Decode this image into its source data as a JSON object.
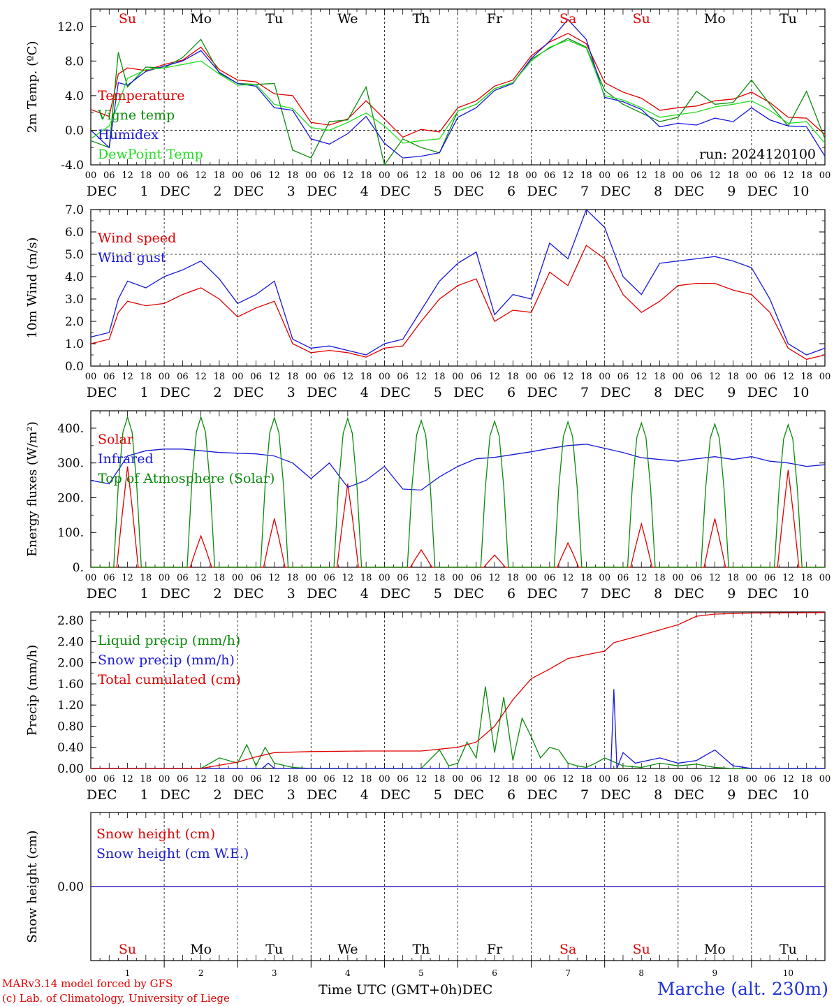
{
  "days": [
    "1",
    "2",
    "3",
    "4",
    "5",
    "6",
    "7",
    "8",
    "9",
    "10"
  ],
  "month": "DEC",
  "weekdays": [
    "Su",
    "Mo",
    "Tu",
    "We",
    "Th",
    "Fr",
    "Sa",
    "Su",
    "Mo",
    "Tu"
  ],
  "weekday_colors": [
    "#e00000",
    "#000000",
    "#000000",
    "#000000",
    "#000000",
    "#000000",
    "#e00000",
    "#e00000",
    "#000000",
    "#000000"
  ],
  "hour_ticks": [
    "00",
    "06",
    "12",
    "18"
  ],
  "run_label": "run: 2024120100",
  "footer": {
    "model": "MARv3.14 model forced by GFS",
    "credit": "(c) Lab. of Climatology, University of Liege",
    "time_label": "Time UTC (GMT+0h)",
    "time_month": "DEC",
    "location": "Marche (alt. 230m)"
  },
  "colors": {
    "red": "#e00000",
    "green": "#0a8a0a",
    "blue": "#1818d8",
    "lightgreen": "#22dd22"
  },
  "chart_data": [
    {
      "type": "line",
      "ylabel": "2m Temp. (ºC)",
      "ylim": [
        -4,
        14
      ],
      "yticks": [
        "-4.0",
        "0.0",
        "4.0",
        "8.0",
        "12.0"
      ],
      "ytick_values": [
        -4,
        0,
        4,
        8,
        12
      ],
      "refline": 0,
      "x_unit": "hours since Dec 1 00 UTC",
      "series": [
        {
          "name": "Temperature",
          "color": "red",
          "x": [
            0,
            6,
            9,
            12,
            18,
            24,
            30,
            36,
            42,
            48,
            54,
            60,
            66,
            72,
            78,
            84,
            90,
            96,
            102,
            108,
            114,
            120,
            126,
            132,
            138,
            144,
            150,
            156,
            162,
            168,
            174,
            180,
            186,
            192,
            198,
            204,
            210,
            216,
            222,
            228,
            234,
            240
          ],
          "y": [
            2.4,
            1.6,
            6.5,
            7.2,
            6.9,
            7.6,
            8.1,
            9.6,
            7.0,
            5.8,
            5.6,
            4.2,
            4.0,
            0.9,
            0.6,
            1.3,
            3.4,
            1.3,
            -0.8,
            0.1,
            -0.2,
            2.6,
            3.4,
            5.1,
            5.8,
            8.6,
            10.2,
            11.2,
            10.0,
            5.5,
            4.4,
            3.7,
            2.3,
            2.6,
            2.8,
            3.4,
            3.6,
            4.4,
            3.2,
            1.5,
            1.4,
            -0.5
          ]
        },
        {
          "name": "Vigne temp",
          "color": "green",
          "x": [
            0,
            6,
            9,
            12,
            18,
            24,
            30,
            36,
            42,
            48,
            54,
            60,
            66,
            72,
            78,
            84,
            90,
            96,
            102,
            108,
            114,
            120,
            126,
            132,
            138,
            144,
            150,
            156,
            162,
            168,
            174,
            180,
            186,
            192,
            198,
            204,
            210,
            216,
            222,
            228,
            234,
            240
          ],
          "y": [
            -1.2,
            -2.0,
            9.0,
            5.0,
            7.3,
            7.2,
            8.4,
            10.5,
            6.6,
            5.4,
            5.3,
            5.4,
            -2.3,
            -3.2,
            1.0,
            1.2,
            5.0,
            -4.0,
            -1.0,
            -2.0,
            -2.6,
            2.2,
            3.0,
            4.8,
            5.5,
            8.2,
            9.5,
            10.6,
            9.6,
            4.6,
            3.0,
            2.0,
            1.0,
            1.5,
            4.5,
            3.0,
            3.2,
            5.8,
            3.0,
            0.5,
            4.5,
            -1.0
          ]
        },
        {
          "name": "Humidex",
          "color": "blue",
          "x": [
            0,
            6,
            9,
            12,
            18,
            24,
            30,
            36,
            42,
            48,
            54,
            60,
            66,
            72,
            78,
            84,
            90,
            96,
            102,
            108,
            114,
            120,
            126,
            132,
            138,
            144,
            150,
            156,
            162,
            168,
            174,
            180,
            186,
            192,
            198,
            204,
            210,
            216,
            222,
            228,
            234,
            240
          ],
          "y": [
            0.0,
            -2.0,
            5.5,
            5.2,
            6.8,
            7.4,
            8.0,
            9.2,
            6.7,
            5.4,
            5.1,
            2.6,
            2.3,
            -1.0,
            -1.6,
            -0.4,
            1.6,
            -1.5,
            -3.2,
            -3.0,
            -2.6,
            1.5,
            2.6,
            4.6,
            5.4,
            8.3,
            10.3,
            12.8,
            10.5,
            3.8,
            3.3,
            2.4,
            0.4,
            0.8,
            0.6,
            1.4,
            1.0,
            2.6,
            1.2,
            0.5,
            0.4,
            -3.0
          ]
        },
        {
          "name": "DewPoint Temp",
          "color": "lightgreen",
          "x": [
            0,
            6,
            9,
            12,
            18,
            24,
            30,
            36,
            42,
            48,
            54,
            60,
            66,
            72,
            78,
            84,
            90,
            96,
            102,
            108,
            114,
            120,
            126,
            132,
            138,
            144,
            150,
            156,
            162,
            168,
            174,
            180,
            186,
            192,
            198,
            204,
            210,
            216,
            222,
            228,
            234,
            240
          ],
          "y": [
            -1.0,
            0.5,
            3.0,
            6.0,
            7.0,
            7.2,
            7.6,
            8.0,
            6.5,
            5.2,
            5.3,
            3.0,
            2.5,
            0.3,
            0.0,
            0.9,
            2.0,
            0.5,
            -1.5,
            -1.2,
            -1.0,
            2.2,
            3.0,
            4.8,
            5.5,
            8.0,
            9.6,
            10.4,
            9.5,
            4.0,
            3.5,
            2.6,
            1.5,
            1.8,
            2.1,
            2.7,
            3.0,
            3.4,
            2.3,
            0.8,
            1.0,
            -1.5
          ]
        }
      ]
    },
    {
      "type": "line",
      "ylabel": "10m Wind (m/s)",
      "ylim": [
        0,
        7
      ],
      "yticks": [
        "0.0",
        "1.0",
        "2.0",
        "3.0",
        "4.0",
        "5.0",
        "6.0",
        "7.0"
      ],
      "ytick_values": [
        0,
        1,
        2,
        3,
        4,
        5,
        6,
        7
      ],
      "refline": 5,
      "series": [
        {
          "name": "Wind speed",
          "color": "red",
          "x": [
            0,
            6,
            9,
            12,
            18,
            24,
            30,
            36,
            42,
            48,
            54,
            60,
            66,
            72,
            78,
            84,
            90,
            96,
            102,
            108,
            114,
            120,
            126,
            132,
            138,
            144,
            150,
            156,
            162,
            168,
            174,
            180,
            186,
            192,
            198,
            204,
            210,
            216,
            222,
            228,
            234,
            240
          ],
          "y": [
            1.0,
            1.2,
            2.4,
            2.9,
            2.7,
            2.8,
            3.2,
            3.5,
            3.0,
            2.2,
            2.6,
            2.9,
            1.0,
            0.6,
            0.7,
            0.6,
            0.4,
            0.8,
            0.9,
            2.0,
            3.0,
            3.6,
            3.9,
            2.0,
            2.5,
            2.4,
            4.2,
            3.6,
            5.4,
            4.8,
            3.2,
            2.4,
            2.9,
            3.6,
            3.7,
            3.7,
            3.4,
            3.2,
            2.4,
            0.8,
            0.3,
            0.5
          ]
        },
        {
          "name": "Wind gust",
          "color": "blue",
          "x": [
            0,
            6,
            9,
            12,
            18,
            24,
            30,
            36,
            42,
            48,
            54,
            60,
            66,
            72,
            78,
            84,
            90,
            96,
            102,
            108,
            114,
            120,
            126,
            132,
            138,
            144,
            150,
            156,
            162,
            168,
            174,
            180,
            186,
            192,
            198,
            204,
            210,
            216,
            222,
            228,
            234,
            240
          ],
          "y": [
            1.3,
            1.5,
            3.0,
            3.8,
            3.5,
            4.0,
            4.3,
            4.7,
            3.9,
            2.8,
            3.2,
            3.8,
            1.2,
            0.8,
            0.9,
            0.7,
            0.5,
            1.0,
            1.2,
            2.5,
            3.8,
            4.6,
            5.1,
            2.3,
            3.2,
            3.0,
            5.5,
            4.8,
            7.0,
            6.2,
            4.0,
            3.2,
            4.6,
            4.7,
            4.8,
            4.9,
            4.7,
            4.4,
            3.0,
            1.0,
            0.5,
            0.8
          ]
        }
      ]
    },
    {
      "type": "line",
      "ylabel": "Energy fluxes (W/m²)",
      "ylim": [
        0,
        450
      ],
      "yticks": [
        "0.",
        "100.",
        "200.",
        "300.",
        "400."
      ],
      "ytick_values": [
        0,
        100,
        200,
        300,
        400
      ],
      "series": [
        {
          "name": "Solar",
          "color": "red",
          "peaks": [
            290,
            90,
            140,
            240,
            50,
            35,
            70,
            125,
            140,
            280
          ]
        },
        {
          "name": "Infrared",
          "color": "blue",
          "x": [
            0,
            6,
            12,
            18,
            24,
            30,
            36,
            42,
            48,
            54,
            60,
            66,
            72,
            78,
            84,
            90,
            96,
            102,
            108,
            114,
            120,
            126,
            132,
            138,
            144,
            150,
            156,
            162,
            168,
            174,
            180,
            186,
            192,
            198,
            204,
            210,
            216,
            222,
            228,
            234,
            240
          ],
          "y": [
            250,
            240,
            320,
            335,
            340,
            340,
            335,
            330,
            328,
            326,
            320,
            300,
            255,
            300,
            230,
            250,
            290,
            225,
            222,
            260,
            290,
            312,
            316,
            324,
            332,
            342,
            350,
            354,
            342,
            330,
            315,
            310,
            305,
            312,
            318,
            310,
            318,
            305,
            300,
            290,
            295
          ]
        },
        {
          "name": "Top of Atmosphere (Solar)",
          "color": "green",
          "peaks": [
            432,
            432,
            430,
            428,
            422,
            420,
            418,
            415,
            412,
            410
          ]
        }
      ]
    },
    {
      "type": "line",
      "ylabel": "Precip (mm/h)",
      "ylim": [
        0,
        2.96
      ],
      "yticks": [
        "0.00",
        "0.40",
        "0.80",
        "1.20",
        "1.60",
        "2.00",
        "2.40",
        "2.80"
      ],
      "ytick_values": [
        0,
        0.4,
        0.8,
        1.2,
        1.6,
        2.0,
        2.4,
        2.8
      ],
      "series": [
        {
          "name": "Liquid precip (mm/h)",
          "color": "green",
          "x": [
            0,
            36,
            42,
            48,
            51,
            54,
            57,
            60,
            66,
            72,
            108,
            114,
            117,
            120,
            123,
            126,
            129,
            132,
            135,
            138,
            141,
            144,
            147,
            150,
            153,
            156,
            159,
            162,
            165,
            168,
            174,
            180,
            186,
            192,
            198,
            204,
            210,
            216,
            240
          ],
          "y": [
            0,
            0,
            0.2,
            0.1,
            0.45,
            0.05,
            0.4,
            0.1,
            0.02,
            0,
            0,
            0.35,
            0.05,
            0.1,
            0.5,
            0.2,
            1.55,
            0.3,
            1.35,
            0.15,
            0.95,
            0.6,
            0.2,
            0.4,
            0.35,
            0.1,
            0.05,
            0.02,
            0.1,
            0.2,
            0.05,
            0.02,
            0.1,
            0.05,
            0.08,
            0.02,
            0,
            0,
            0
          ]
        },
        {
          "name": "Snow precip (mm/h)",
          "color": "blue",
          "x": [
            0,
            56,
            58,
            60,
            168,
            170,
            171,
            172,
            174,
            178,
            186,
            192,
            198,
            204,
            210,
            216,
            240
          ],
          "y": [
            0,
            0,
            0.1,
            0,
            0,
            0,
            1.5,
            0,
            0.3,
            0.1,
            0.2,
            0.1,
            0.15,
            0.35,
            0.05,
            0,
            0
          ]
        },
        {
          "name": "Total cumulated (cm)",
          "color": "red",
          "x": [
            0,
            36,
            48,
            54,
            60,
            72,
            90,
            108,
            120,
            126,
            132,
            138,
            144,
            150,
            156,
            162,
            168,
            171,
            180,
            186,
            192,
            198,
            204,
            216,
            240
          ],
          "y": [
            0,
            0,
            0.12,
            0.22,
            0.3,
            0.32,
            0.33,
            0.33,
            0.4,
            0.5,
            0.8,
            1.3,
            1.7,
            1.88,
            2.08,
            2.15,
            2.22,
            2.38,
            2.52,
            2.62,
            2.72,
            2.88,
            2.92,
            2.94,
            2.95
          ]
        }
      ]
    },
    {
      "type": "line",
      "ylabel": "Snow height (cm)",
      "ylim": [
        -1,
        1
      ],
      "yticks": [
        "0.00"
      ],
      "ytick_values": [
        0
      ],
      "series": [
        {
          "name": "Snow height (cm)",
          "color": "red",
          "x": [
            0,
            240
          ],
          "y": [
            0,
            0
          ]
        },
        {
          "name": "Snow height (cm W.E.)",
          "color": "blue",
          "x": [
            0,
            240
          ],
          "y": [
            0,
            0
          ]
        }
      ]
    }
  ]
}
